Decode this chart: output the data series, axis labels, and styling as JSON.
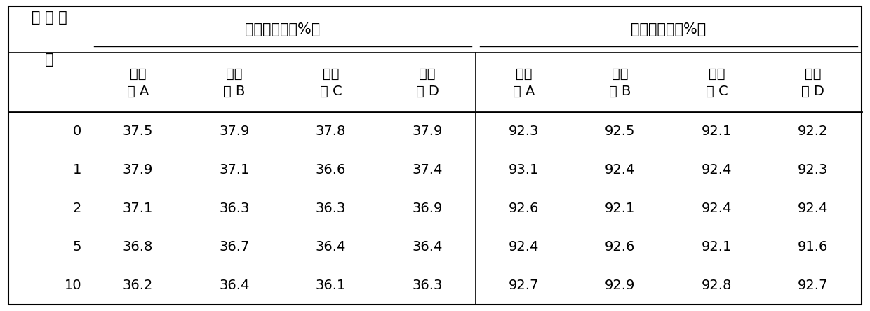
{
  "row_header_label_line1": "再 生 次",
  "row_header_label_line2": "数",
  "group1_header": "丙烷转化率（%）",
  "group2_header": "丙烯选择性（%）",
  "col_subheaders": [
    "催化\n剂 A",
    "催化\n剂 B",
    "催化\n剂 C",
    "催化\n剂 D",
    "催化\n剂 A",
    "催化\n剂 B",
    "催化\n剂 C",
    "催化\n剂 D"
  ],
  "row_labels": [
    "0",
    "1",
    "2",
    "5",
    "10"
  ],
  "data": [
    [
      37.5,
      37.9,
      37.8,
      37.9,
      92.3,
      92.5,
      92.1,
      92.2
    ],
    [
      37.9,
      37.1,
      36.6,
      37.4,
      93.1,
      92.4,
      92.4,
      92.3
    ],
    [
      37.1,
      36.3,
      36.3,
      36.9,
      92.6,
      92.1,
      92.4,
      92.4
    ],
    [
      36.8,
      36.7,
      36.4,
      36.4,
      92.4,
      92.6,
      92.1,
      91.6
    ],
    [
      36.2,
      36.4,
      36.1,
      36.3,
      92.7,
      92.9,
      92.8,
      92.7
    ]
  ],
  "bg_color": "#ffffff",
  "text_color": "#000000",
  "line_color": "#000000",
  "font_size": 14,
  "header_font_size": 15
}
